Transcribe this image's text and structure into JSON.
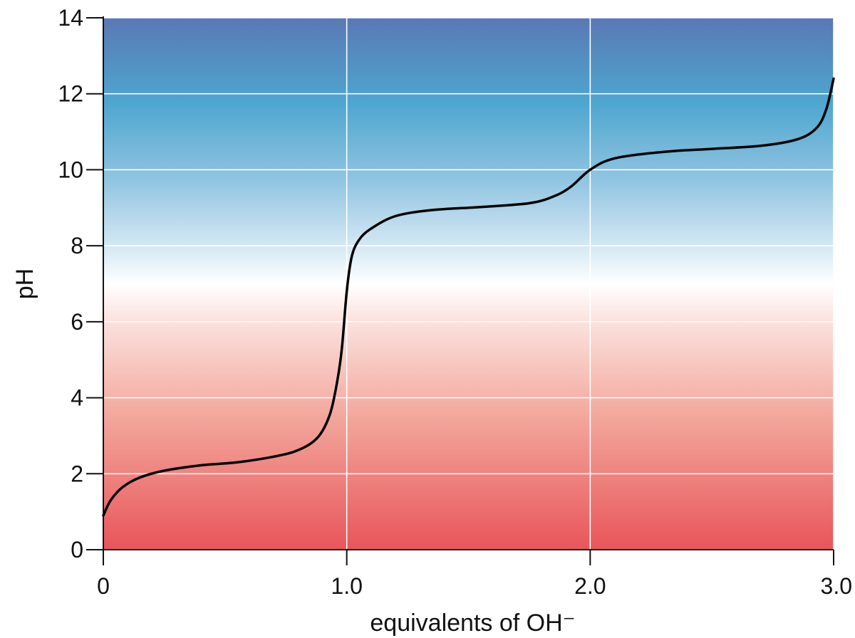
{
  "chart_data": {
    "type": "line",
    "title": "",
    "xlabel": "equivalents of OH⁻",
    "ylabel": "pH",
    "xlim": [
      0,
      3.0
    ],
    "ylim": [
      0,
      14
    ],
    "grid": true,
    "background": "vertical pH color gradient: red (acidic, low pH) through white (pH 7) to blue (basic, high pH)",
    "x_ticks": [
      0,
      1.0,
      2.0,
      3.0
    ],
    "x_tick_labels": [
      "0",
      "1.0",
      "2.0",
      "3.0"
    ],
    "y_ticks": [
      0,
      2,
      4,
      6,
      8,
      10,
      12,
      14
    ],
    "y_tick_labels": [
      "0",
      "2",
      "4",
      "6",
      "8",
      "10",
      "12",
      "14"
    ],
    "series": [
      {
        "name": "titration curve",
        "color": "#000000",
        "x": [
          0.0,
          0.03,
          0.08,
          0.15,
          0.25,
          0.4,
          0.55,
          0.7,
          0.8,
          0.88,
          0.93,
          0.96,
          0.98,
          1.0,
          1.02,
          1.05,
          1.1,
          1.2,
          1.35,
          1.55,
          1.75,
          1.85,
          1.92,
          2.0,
          2.1,
          2.3,
          2.5,
          2.7,
          2.85,
          2.93,
          2.97,
          3.0
        ],
        "y": [
          0.9,
          1.3,
          1.65,
          1.9,
          2.08,
          2.22,
          2.3,
          2.45,
          2.62,
          2.95,
          3.55,
          4.4,
          5.3,
          6.8,
          7.7,
          8.15,
          8.45,
          8.78,
          8.94,
          9.02,
          9.12,
          9.3,
          9.55,
          10.0,
          10.3,
          10.47,
          10.55,
          10.63,
          10.8,
          11.1,
          11.6,
          12.4
        ]
      }
    ],
    "colors": {
      "low_ph": "#e8555a",
      "neutral": "#ffffff",
      "high_ph": "#5a78b4",
      "mid_high": "#4ea6d0",
      "gridline": "#ffffff",
      "axis": "#111111",
      "curve": "#000000"
    }
  }
}
